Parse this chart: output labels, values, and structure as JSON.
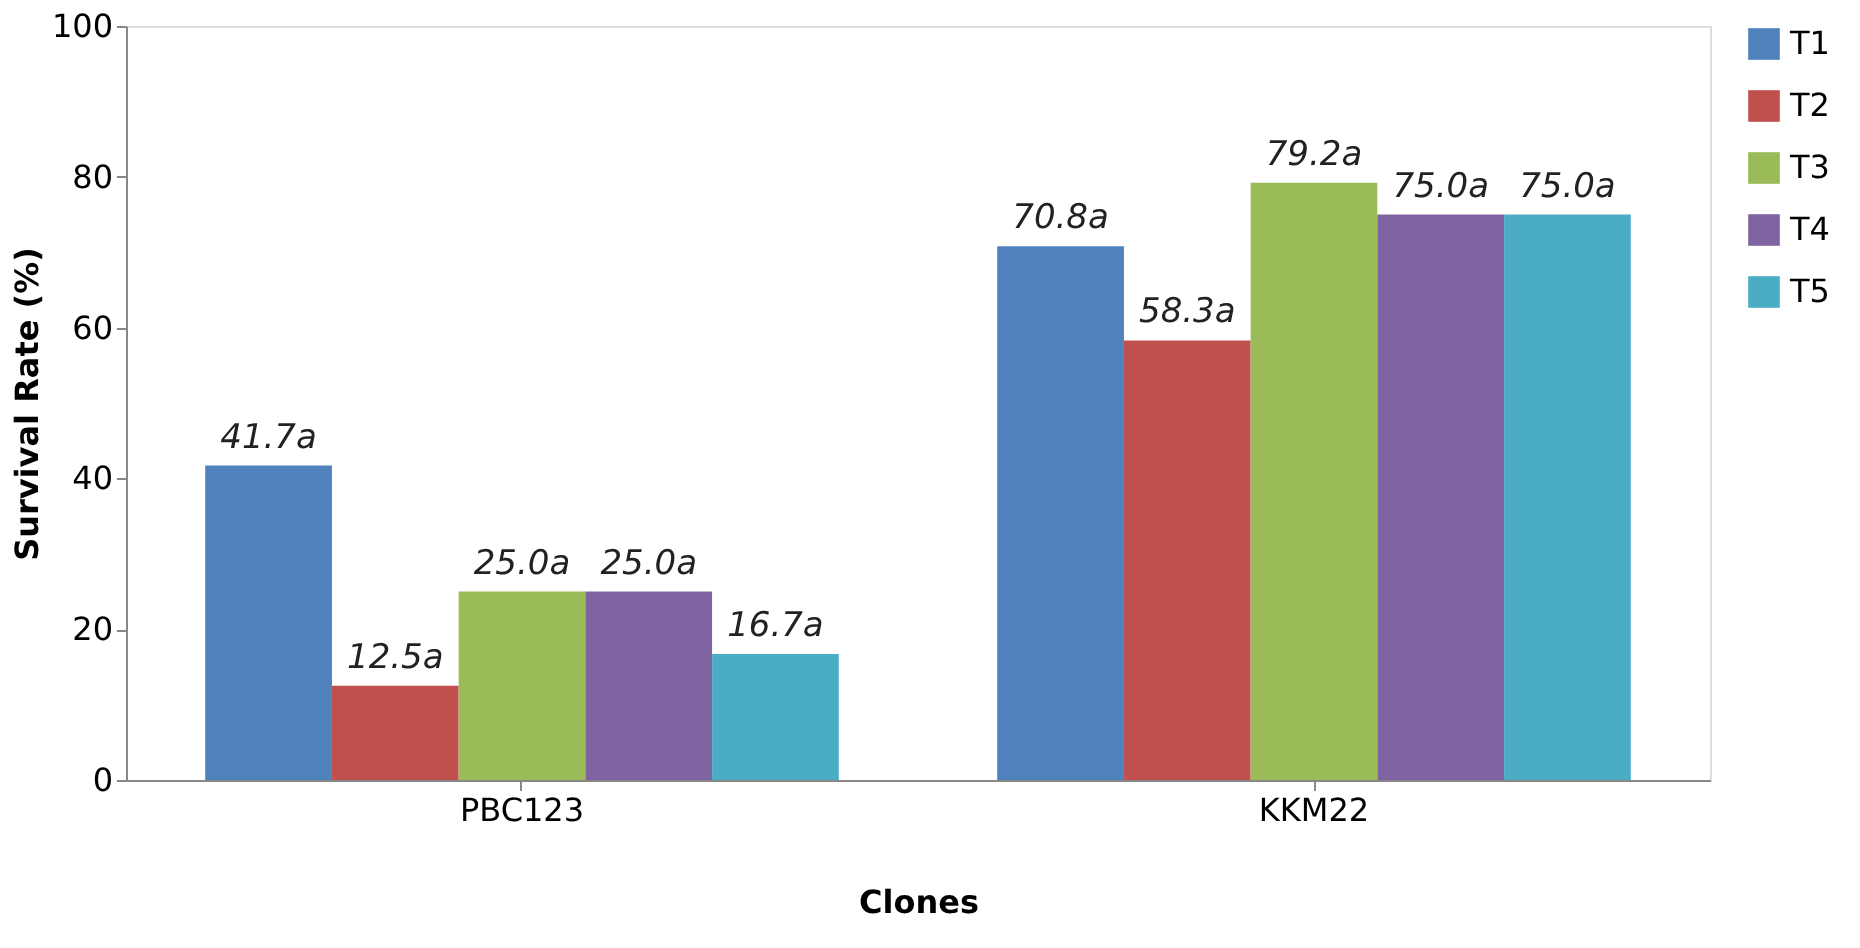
{
  "chart_data": {
    "type": "bar",
    "xlabel": "Clones",
    "ylabel": "Survival Rate (%)",
    "categories": [
      "PBC123",
      "KKM22"
    ],
    "series": [
      {
        "name": "T1",
        "color": "#4f81bd",
        "values": [
          41.7,
          70.8
        ],
        "value_labels": [
          "41.7a",
          "70.8a"
        ]
      },
      {
        "name": "T2",
        "color": "#c0504d",
        "values": [
          12.5,
          58.3
        ],
        "value_labels": [
          "12.5a",
          "58.3a"
        ]
      },
      {
        "name": "T3",
        "color": "#9bbb59",
        "values": [
          25.0,
          79.2
        ],
        "value_labels": [
          "25.0a",
          "79.2a"
        ]
      },
      {
        "name": "T4",
        "color": "#8064a2",
        "values": [
          25.0,
          75.0
        ],
        "value_labels": [
          "25.0a",
          "75.0a"
        ]
      },
      {
        "name": "T5",
        "color": "#4bacc6",
        "values": [
          16.7,
          75.0
        ],
        "value_labels": [
          "16.7a",
          "75.0a"
        ]
      }
    ],
    "ylim": [
      0,
      100
    ],
    "yticks": [
      0,
      20,
      40,
      60,
      80,
      100
    ],
    "grid": false,
    "legend": "right"
  }
}
